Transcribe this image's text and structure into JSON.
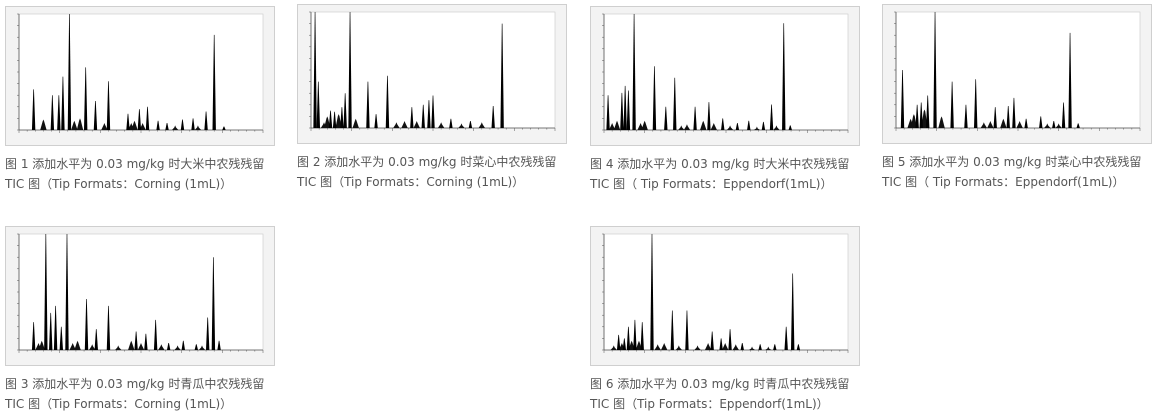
{
  "figures": [
    {
      "id": "fig1",
      "caption1": "图 1 添加水平为 0.03 mg/kg 时大米中农残残留",
      "caption2": "TIC 图（Tip Formats：Corning (1mL)）"
    },
    {
      "id": "fig2",
      "caption1": "图 2 添加水平为 0.03 mg/kg 时菜心中农残残留",
      "caption2": "TIC 图（Tip Formats：Corning (1mL)）"
    },
    {
      "id": "fig4",
      "caption1": "图 4 添加水平为 0.03 mg/kg 时大米中农残残留",
      "caption2": "TIC 图（ Tip Formats：Eppendorf(1mL)）"
    },
    {
      "id": "fig5",
      "caption1": "图 5 添加水平为 0.03 mg/kg 时菜心中农残残留",
      "caption2": "TIC 图（ Tip Formats：Eppendorf(1mL)）"
    },
    {
      "id": "fig3",
      "caption1": "图 3 添加水平为 0.03 mg/kg 时青瓜中农残残留",
      "caption2": "TIC 图（Tip Formats：Corning (1mL)）"
    },
    {
      "id": "fig6",
      "caption1": "图 6 添加水平为 0.03 mg/kg 时青瓜中农残残留",
      "caption2": "TIC 图（Tip Formats：Eppendorf(1mL)）"
    }
  ],
  "chart_data": [
    {
      "type": "area",
      "xlim": [
        0,
        30
      ],
      "ylim": [
        0,
        100
      ],
      "peaks": [
        [
          1.8,
          35
        ],
        [
          4.1,
          30
        ],
        [
          4.9,
          30
        ],
        [
          5.4,
          46
        ],
        [
          6.2,
          100
        ],
        [
          8.2,
          54
        ],
        [
          9.4,
          25
        ],
        [
          11.0,
          42
        ],
        [
          13.4,
          14
        ],
        [
          14.8,
          18
        ],
        [
          15.8,
          20
        ],
        [
          17.1,
          8
        ],
        [
          18.2,
          6
        ],
        [
          20.1,
          9
        ],
        [
          21.4,
          10
        ],
        [
          23.0,
          16
        ],
        [
          24.0,
          82
        ],
        [
          25.2,
          3
        ]
      ],
      "noise": [
        [
          3.0,
          9
        ],
        [
          6.8,
          8
        ],
        [
          7.5,
          10
        ],
        [
          10.5,
          6
        ],
        [
          13.8,
          6
        ],
        [
          14.2,
          8
        ],
        [
          15.2,
          6
        ],
        [
          19.2,
          4
        ],
        [
          22.0,
          4
        ]
      ]
    },
    {
      "type": "area",
      "xlim": [
        0,
        30
      ],
      "ylim": [
        0,
        100
      ],
      "peaks": [
        [
          0.5,
          100
        ],
        [
          0.9,
          40
        ],
        [
          2.4,
          15
        ],
        [
          2.9,
          14
        ],
        [
          3.8,
          18
        ],
        [
          4.2,
          30
        ],
        [
          4.8,
          100
        ],
        [
          7.0,
          40
        ],
        [
          8.0,
          12
        ],
        [
          9.4,
          45
        ],
        [
          12.4,
          18
        ],
        [
          13.8,
          20
        ],
        [
          14.5,
          24
        ],
        [
          15.0,
          28
        ],
        [
          17.2,
          8
        ],
        [
          19.6,
          6
        ],
        [
          22.4,
          19
        ],
        [
          23.5,
          90
        ]
      ],
      "noise": [
        [
          1.6,
          5
        ],
        [
          2.0,
          10
        ],
        [
          3.4,
          12
        ],
        [
          5.5,
          8
        ],
        [
          10.5,
          5
        ],
        [
          11.5,
          6
        ],
        [
          13.0,
          6
        ],
        [
          16.0,
          5
        ],
        [
          18.5,
          4
        ],
        [
          21.0,
          5
        ]
      ]
    },
    {
      "type": "area",
      "xlim": [
        0,
        30
      ],
      "ylim": [
        0,
        100
      ],
      "peaks": [
        [
          0.5,
          30
        ],
        [
          2.2,
          32
        ],
        [
          2.6,
          38
        ],
        [
          3.0,
          34
        ],
        [
          3.7,
          100
        ],
        [
          6.2,
          55
        ],
        [
          7.6,
          20
        ],
        [
          8.7,
          45
        ],
        [
          11.2,
          20
        ],
        [
          12.9,
          24
        ],
        [
          14.6,
          10
        ],
        [
          16.4,
          6
        ],
        [
          17.8,
          8
        ],
        [
          19.6,
          7
        ],
        [
          20.6,
          22
        ],
        [
          22.1,
          92
        ],
        [
          22.9,
          4
        ]
      ],
      "noise": [
        [
          1.0,
          6
        ],
        [
          1.6,
          8
        ],
        [
          4.5,
          6
        ],
        [
          5.0,
          8
        ],
        [
          9.5,
          4
        ],
        [
          10.2,
          5
        ],
        [
          12.2,
          8
        ],
        [
          13.5,
          6
        ],
        [
          15.5,
          4
        ],
        [
          18.8,
          3
        ],
        [
          21.2,
          4
        ]
      ]
    },
    {
      "type": "area",
      "xlim": [
        0,
        30
      ],
      "ylim": [
        0,
        100
      ],
      "peaks": [
        [
          0.8,
          50
        ],
        [
          2.6,
          20
        ],
        [
          3.1,
          22
        ],
        [
          3.9,
          28
        ],
        [
          4.8,
          100
        ],
        [
          6.9,
          40
        ],
        [
          8.6,
          20
        ],
        [
          9.8,
          42
        ],
        [
          12.2,
          18
        ],
        [
          13.8,
          19
        ],
        [
          14.5,
          26
        ],
        [
          16.0,
          8
        ],
        [
          17.8,
          10
        ],
        [
          19.4,
          6
        ],
        [
          20.6,
          22
        ],
        [
          21.4,
          82
        ],
        [
          22.4,
          4
        ]
      ],
      "noise": [
        [
          1.8,
          8
        ],
        [
          2.2,
          12
        ],
        [
          3.5,
          16
        ],
        [
          5.6,
          10
        ],
        [
          10.8,
          5
        ],
        [
          11.6,
          6
        ],
        [
          13.2,
          8
        ],
        [
          15.2,
          6
        ],
        [
          18.6,
          4
        ],
        [
          20.0,
          4
        ]
      ]
    },
    {
      "type": "area",
      "xlim": [
        0,
        30
      ],
      "ylim": [
        0,
        100
      ],
      "peaks": [
        [
          1.8,
          24
        ],
        [
          3.3,
          100
        ],
        [
          3.9,
          32
        ],
        [
          4.5,
          38
        ],
        [
          5.2,
          20
        ],
        [
          5.9,
          100
        ],
        [
          8.3,
          44
        ],
        [
          9.5,
          18
        ],
        [
          11.0,
          38
        ],
        [
          14.4,
          16
        ],
        [
          15.6,
          14
        ],
        [
          16.8,
          26
        ],
        [
          18.4,
          6
        ],
        [
          20.2,
          8
        ],
        [
          21.8,
          5
        ],
        [
          23.2,
          28
        ],
        [
          23.9,
          80
        ],
        [
          24.6,
          8
        ]
      ],
      "noise": [
        [
          2.4,
          6
        ],
        [
          2.8,
          8
        ],
        [
          6.6,
          6
        ],
        [
          7.2,
          8
        ],
        [
          9.0,
          5
        ],
        [
          12.2,
          4
        ],
        [
          13.8,
          8
        ],
        [
          15.0,
          6
        ],
        [
          17.5,
          5
        ],
        [
          19.5,
          4
        ],
        [
          22.5,
          4
        ]
      ]
    },
    {
      "type": "area",
      "xlim": [
        0,
        30
      ],
      "ylim": [
        0,
        100
      ],
      "peaks": [
        [
          1.8,
          13
        ],
        [
          2.5,
          10
        ],
        [
          3.0,
          20
        ],
        [
          3.8,
          26
        ],
        [
          4.7,
          24
        ],
        [
          5.9,
          100
        ],
        [
          8.4,
          34
        ],
        [
          10.2,
          34
        ],
        [
          13.3,
          16
        ],
        [
          14.4,
          10
        ],
        [
          15.5,
          18
        ],
        [
          17.0,
          6
        ],
        [
          19.2,
          5
        ],
        [
          21.0,
          5
        ],
        [
          22.4,
          20
        ],
        [
          23.2,
          66
        ],
        [
          23.9,
          5
        ]
      ],
      "noise": [
        [
          1.2,
          4
        ],
        [
          2.2,
          6
        ],
        [
          3.4,
          8
        ],
        [
          4.3,
          8
        ],
        [
          6.6,
          5
        ],
        [
          7.4,
          6
        ],
        [
          9.2,
          4
        ],
        [
          11.5,
          4
        ],
        [
          12.8,
          6
        ],
        [
          14.9,
          6
        ],
        [
          16.2,
          5
        ],
        [
          18.2,
          3
        ],
        [
          20.2,
          3
        ]
      ]
    }
  ]
}
